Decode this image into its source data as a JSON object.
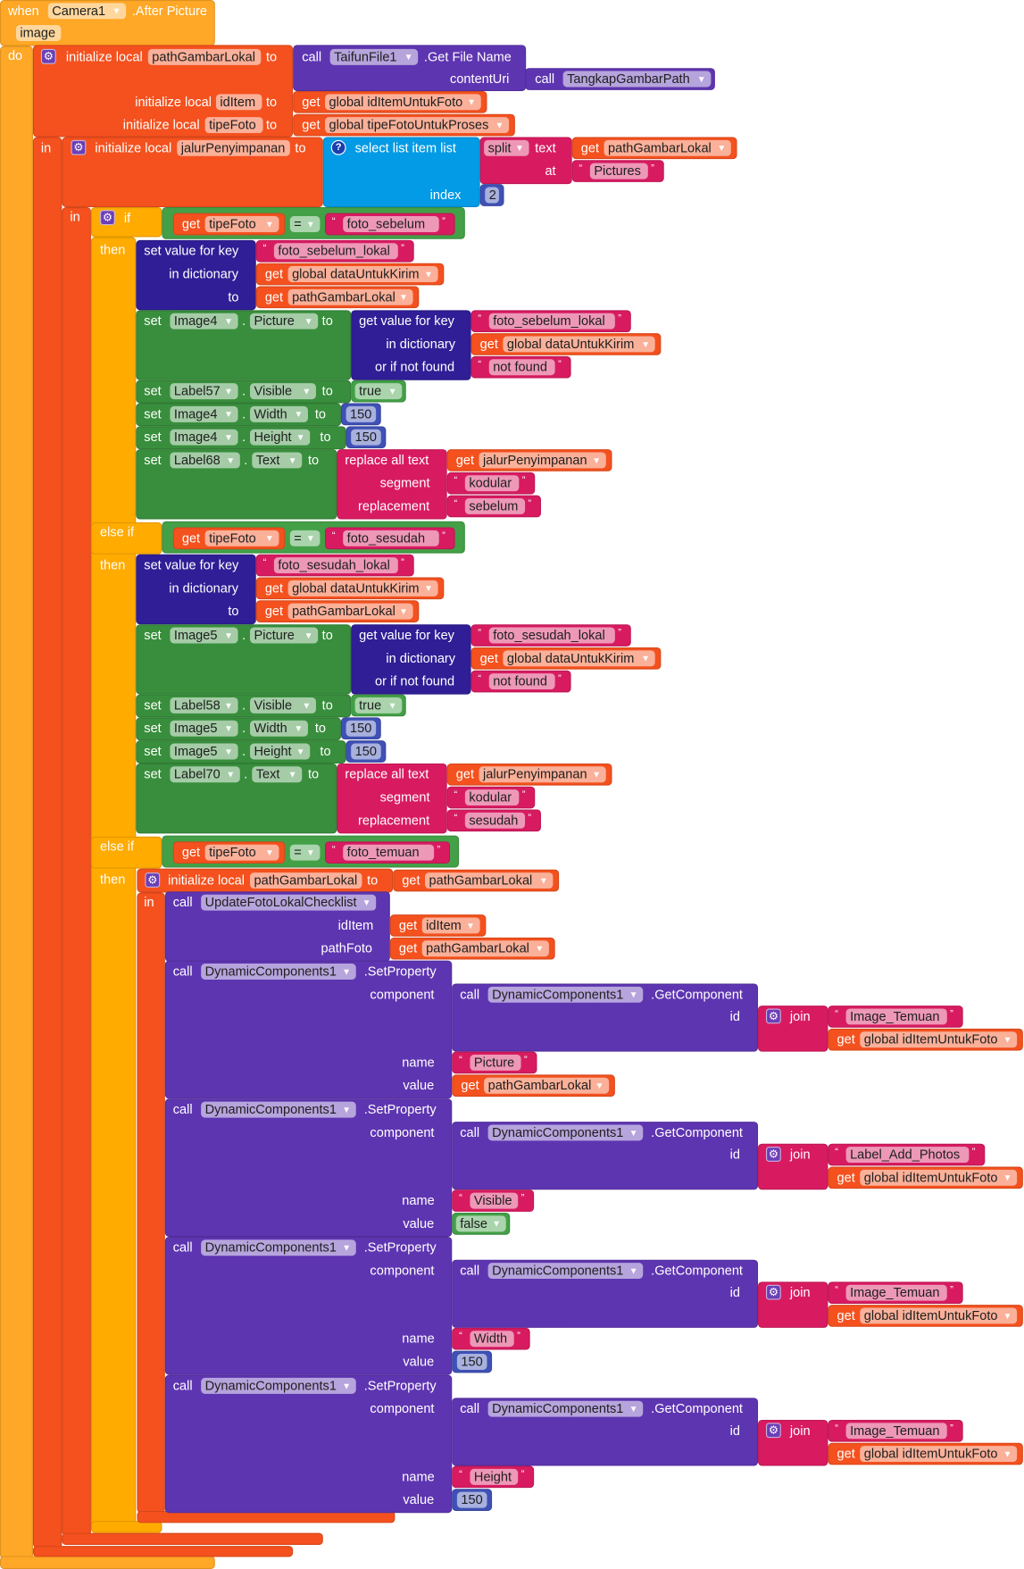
{
  "labels": {
    "when": "when",
    "do": "do",
    "in": "in",
    "to": "to",
    "initialize_local": "initialize local",
    "get": "get",
    "call": "call",
    "set": "set",
    "dot": ".",
    "if": "if",
    "then": "then",
    "else_if": "else if",
    "select_list_item": "select list item  list",
    "index": "index",
    "text": "text",
    "at": "at",
    "set_value_for_key": "set value for key",
    "in_dictionary": "in dictionary",
    "get_value_for_key": "get value for key",
    "or_if_not_found": "or if not found",
    "replace_all_text": "replace all text",
    "segment": "segment",
    "replacement": "replacement",
    "component": "component",
    "name": "name",
    "value": "value",
    "id": "id",
    "join": "join",
    "set_property": ".SetProperty",
    "get_component": ".GetComponent",
    "open_quote": "“",
    "close_quote": "”",
    "dropdown": "▼",
    "gear": "⚙",
    "help": "?"
  },
  "event": {
    "component": "Camera1",
    "name": ".After Picture",
    "param": "image"
  },
  "outer": {
    "var1": "pathGambarLokal",
    "call_component": "TaifunFile1",
    "method": ".Get File Name",
    "arg": "contentUri",
    "inner_call": "TangkapGambarPath",
    "var2": "idItem",
    "var2_source": "global idItemUntukFoto",
    "var3": "tipeFoto",
    "var3_source": "global tipeFotoUntukProses"
  },
  "jalur": {
    "var": "jalurPenyimpanan",
    "split_mode": "split",
    "split_text_source": "pathGambarLokal",
    "split_at": "Pictures",
    "index": "2"
  },
  "branches": [
    {
      "cond_var": "tipeFoto",
      "op": "=",
      "cond_value": "foto_sebelum",
      "key": "foto_sebelum_lokal",
      "dict": "global dataUntukKirim",
      "path": "pathGambarLokal",
      "image": "Image4",
      "prop_picture": "Picture",
      "not_found": "not found",
      "label": "Label57",
      "prop_visible": "Visible",
      "visible": "true",
      "prop_width": "Width",
      "width": "150",
      "prop_height": "Height",
      "height": "150",
      "text_label": "Label68",
      "prop_text": "Text",
      "replace_source": "jalurPenyimpanan",
      "segment": "kodular",
      "replacement": "sebelum"
    },
    {
      "cond_var": "tipeFoto",
      "op": "=",
      "cond_value": "foto_sesudah",
      "key": "foto_sesudah_lokal",
      "dict": "global dataUntukKirim",
      "path": "pathGambarLokal",
      "image": "Image5",
      "prop_picture": "Picture",
      "not_found": "not found",
      "label": "Label58",
      "prop_visible": "Visible",
      "visible": "true",
      "prop_width": "Width",
      "width": "150",
      "prop_height": "Height",
      "height": "150",
      "text_label": "Label70",
      "prop_text": "Text",
      "replace_source": "jalurPenyimpanan",
      "segment": "kodular",
      "replacement": "sesudah"
    },
    {
      "cond_var": "tipeFoto",
      "op": "=",
      "cond_value": "foto_temuan"
    }
  ],
  "temuan": {
    "var": "pathGambarLokal",
    "source": "pathGambarLokal",
    "update_component": "UpdateFotoLokalChecklist",
    "id_item_arg": "idItem",
    "id_item_source": "idItem",
    "path_arg": "pathFoto",
    "path_source": "pathGambarLokal",
    "set_properties": [
      {
        "component": "DynamicComponents1",
        "getter_component": "DynamicComponents1",
        "id_prefix": "Image_Temuan",
        "id_suffix_source": "global idItemUntukFoto",
        "name": "Picture",
        "value": "pathGambarLokal",
        "value_type": "get"
      },
      {
        "component": "DynamicComponents1",
        "getter_component": "DynamicComponents1",
        "id_prefix": "Label_Add_Photos",
        "id_suffix_source": "global idItemUntukFoto",
        "name": "Visible",
        "value": "false",
        "value_type": "logic"
      },
      {
        "component": "DynamicComponents1",
        "getter_component": "DynamicComponents1",
        "id_prefix": "Image_Temuan",
        "id_suffix_source": "global idItemUntukFoto",
        "name": "Width",
        "value": "150",
        "value_type": "number"
      },
      {
        "component": "DynamicComponents1",
        "getter_component": "DynamicComponents1",
        "id_prefix": "Image_Temuan",
        "id_suffix_source": "global idItemUntukFoto",
        "name": "Height",
        "value": "150",
        "value_type": "number"
      }
    ]
  },
  "colors": {
    "event": "#FFA726",
    "local_variable": "#F4511E",
    "component_call": "#5E35B1",
    "list": "#039BE5",
    "text": "#D81B60",
    "math": "#3F51B5",
    "dictionary": "#2F1E96",
    "component_set": "#388E3C",
    "control": "#FFAB00",
    "logic": "#43A047"
  }
}
